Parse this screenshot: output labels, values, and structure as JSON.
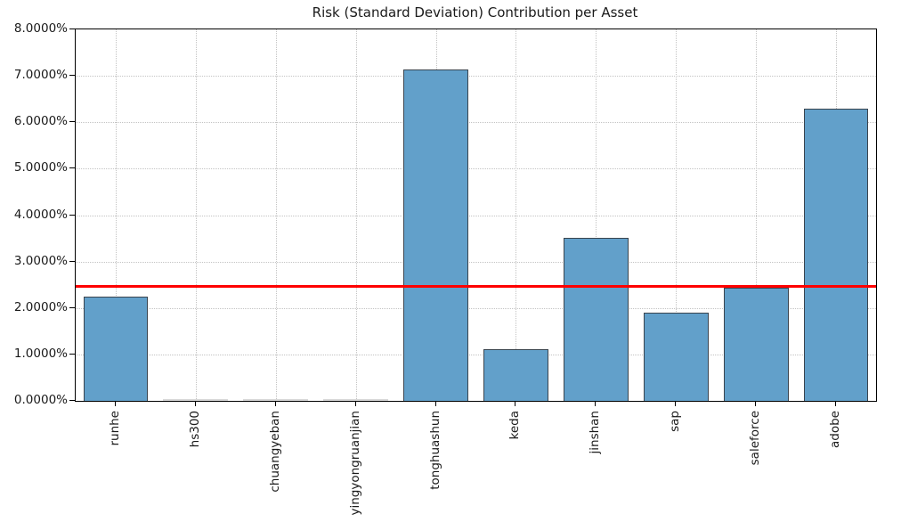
{
  "chart_data": {
    "type": "bar",
    "title": "Risk (Standard Deviation) Contribution per Asset",
    "xlabel": "",
    "ylabel": "",
    "categories": [
      "runhe",
      "hs300",
      "chuangyeban",
      "yingyongruanjian",
      "tonghuashun",
      "keda",
      "jinshan",
      "sap",
      "saleforce",
      "adobe"
    ],
    "values_pct": [
      2.24,
      0.0,
      0.0,
      0.0,
      7.14,
      1.11,
      3.51,
      1.9,
      2.44,
      6.29
    ],
    "avg_line_pct": 2.47,
    "ylim_pct": [
      0,
      8
    ],
    "yticks": [
      {
        "value": 0,
        "label": "0.0000%"
      },
      {
        "value": 1,
        "label": "1.0000%"
      },
      {
        "value": 2,
        "label": "2.0000%"
      },
      {
        "value": 3,
        "label": "3.0000%"
      },
      {
        "value": 4,
        "label": "4.0000%"
      },
      {
        "value": 5,
        "label": "5.0000%"
      },
      {
        "value": 6,
        "label": "6.0000%"
      },
      {
        "value": 7,
        "label": "7.0000%"
      },
      {
        "value": 8,
        "label": "8.0000%"
      }
    ],
    "legend": null,
    "grid": "dotted-both-axes",
    "colors": {
      "bar_fill": "#62a0ca",
      "bar_edge": "#3a444e",
      "zero_bar": "#d9d9d9",
      "avg_line": "#ff0000",
      "grid": "#c3c3c3",
      "axis": "#000000",
      "text": "#1a1a1a",
      "background": "#ffffff"
    }
  }
}
